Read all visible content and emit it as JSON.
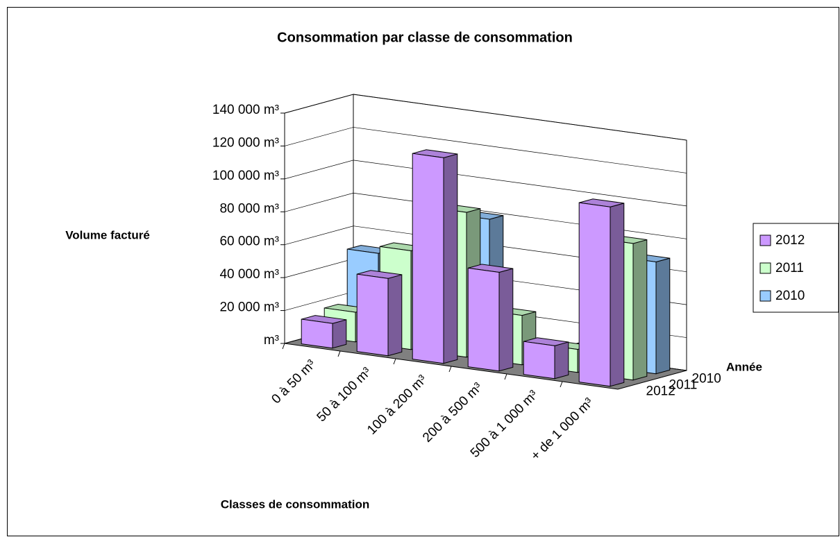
{
  "chart_data": {
    "type": "bar3d",
    "title": "Consommation par classe de consommation",
    "y_label": "Volume facturé",
    "x_label": "Classes de consommation",
    "z_label": "Année",
    "categories": [
      "0 à 50 m³",
      "50 à 100 m³",
      "100 à 200 m³",
      "200 à 500 m³",
      "500 à 1 000 m³",
      "+ de 1 000 m³"
    ],
    "series": [
      {
        "name": "2012",
        "color": "#cc99ff",
        "values": [
          15000,
          47000,
          125000,
          60000,
          20000,
          109000
        ]
      },
      {
        "name": "2011",
        "color": "#ccffcc",
        "values": [
          18000,
          60000,
          88000,
          30000,
          14000,
          83000
        ]
      },
      {
        "name": "2010",
        "color": "#99ccff",
        "values": [
          50000,
          55000,
          80000,
          8000,
          10000,
          68000
        ]
      }
    ],
    "ylim": [
      0,
      140000
    ],
    "yticks": [
      {
        "value": 0,
        "label": "m³"
      },
      {
        "value": 20000,
        "label": "20 000 m³"
      },
      {
        "value": 40000,
        "label": "40 000 m³"
      },
      {
        "value": 60000,
        "label": "60 000 m³"
      },
      {
        "value": 80000,
        "label": "80 000 m³"
      },
      {
        "value": 100000,
        "label": "100 000 m³"
      },
      {
        "value": 120000,
        "label": "120 000 m³"
      },
      {
        "value": 140000,
        "label": "140 000 m³"
      }
    ],
    "grid": true,
    "legend": "right"
  }
}
